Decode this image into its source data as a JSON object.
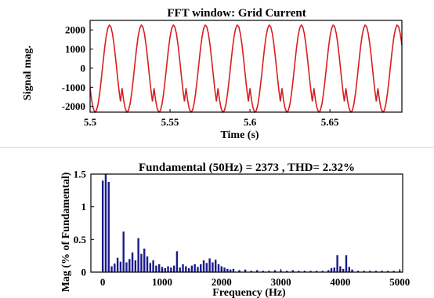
{
  "chart_data": [
    {
      "type": "line",
      "title": "FFT window: Grid Current",
      "xlabel": "Time (s)",
      "ylabel": "Signal mag.",
      "xlim": [
        5.5,
        5.695
      ],
      "ylim": [
        -2300,
        2500
      ],
      "xticks": [
        5.5,
        5.55,
        5.6,
        5.65
      ],
      "xtick_labels": [
        "5.5",
        "5.55",
        "5.6",
        "5.65"
      ],
      "yticks": [
        2000,
        1000,
        0,
        -1000,
        -2000
      ],
      "ytick_labels": [
        "2000",
        "1000",
        "0",
        "-1000",
        "-2000"
      ],
      "series": [
        {
          "frequency_hz": 50,
          "amplitude": 2373,
          "color": "#d62020",
          "x_sample_start": 5.5,
          "x_sample_step": 0.001,
          "y": [
            -1050,
            -1686,
            -2116,
            -2300,
            -2215,
            -1873,
            -1307,
            -580,
            217,
            987,
            1631,
            2069,
            2254,
            2163,
            1804,
            1220,
            479,
            -325,
            -1100,
            -1740
          ]
        }
      ]
    },
    {
      "type": "bar",
      "title": "Fundamental (50Hz) = 2373 , THD= 2.32%",
      "xlabel": "Frequency (Hz)",
      "ylabel": "Mag (% of Fundamental)",
      "xlim": [
        -200,
        5050
      ],
      "ylim": [
        0,
        1.5
      ],
      "xticks": [
        0,
        1000,
        2000,
        3000,
        4000,
        5000
      ],
      "xtick_labels": [
        "0",
        "1000",
        "2000",
        "3000",
        "4000",
        "5000"
      ],
      "yticks": [
        0,
        0.5,
        1,
        1.5
      ],
      "ytick_labels": [
        "0",
        "0.5",
        "1",
        "1.5"
      ],
      "color": "#1a1a8c",
      "points": [
        [
          0,
          1.4
        ],
        [
          50,
          1.5
        ],
        [
          100,
          1.38
        ],
        [
          150,
          0.09
        ],
        [
          200,
          0.13
        ],
        [
          250,
          0.22
        ],
        [
          300,
          0.16
        ],
        [
          350,
          0.62
        ],
        [
          400,
          0.15
        ],
        [
          450,
          0.2
        ],
        [
          500,
          0.3
        ],
        [
          550,
          0.18
        ],
        [
          600,
          0.52
        ],
        [
          650,
          0.28
        ],
        [
          700,
          0.36
        ],
        [
          750,
          0.24
        ],
        [
          800,
          0.14
        ],
        [
          850,
          0.18
        ],
        [
          900,
          0.1
        ],
        [
          950,
          0.12
        ],
        [
          1000,
          0.08
        ],
        [
          1050,
          0.06
        ],
        [
          1100,
          0.09
        ],
        [
          1150,
          0.07
        ],
        [
          1200,
          0.1
        ],
        [
          1250,
          0.32
        ],
        [
          1300,
          0.07
        ],
        [
          1350,
          0.12
        ],
        [
          1400,
          0.09
        ],
        [
          1450,
          0.06
        ],
        [
          1500,
          0.1
        ],
        [
          1550,
          0.12
        ],
        [
          1600,
          0.08
        ],
        [
          1650,
          0.12
        ],
        [
          1700,
          0.18
        ],
        [
          1750,
          0.14
        ],
        [
          1800,
          0.21
        ],
        [
          1850,
          0.15
        ],
        [
          1900,
          0.19
        ],
        [
          1950,
          0.12
        ],
        [
          2000,
          0.09
        ],
        [
          2050,
          0.07
        ],
        [
          2100,
          0.05
        ],
        [
          2150,
          0.04
        ],
        [
          2200,
          0.05
        ],
        [
          2300,
          0.03
        ],
        [
          2400,
          0.04
        ],
        [
          2500,
          0.02
        ],
        [
          2600,
          0.03
        ],
        [
          2700,
          0.02
        ],
        [
          2800,
          0.02
        ],
        [
          2900,
          0.03
        ],
        [
          3000,
          0.02
        ],
        [
          3100,
          0.02
        ],
        [
          3200,
          0.03
        ],
        [
          3300,
          0.02
        ],
        [
          3400,
          0.02
        ],
        [
          3500,
          0.02
        ],
        [
          3600,
          0.02
        ],
        [
          3700,
          0.02
        ],
        [
          3800,
          0.03
        ],
        [
          3850,
          0.06
        ],
        [
          3900,
          0.07
        ],
        [
          3950,
          0.26
        ],
        [
          4000,
          0.09
        ],
        [
          4050,
          0.05
        ],
        [
          4100,
          0.26
        ],
        [
          4150,
          0.08
        ],
        [
          4200,
          0.04
        ],
        [
          4300,
          0.02
        ],
        [
          4400,
          0.02
        ],
        [
          4500,
          0.02
        ],
        [
          4600,
          0.02
        ],
        [
          4700,
          0.02
        ],
        [
          4800,
          0.02
        ],
        [
          4900,
          0.02
        ],
        [
          5000,
          0.02
        ]
      ]
    }
  ]
}
